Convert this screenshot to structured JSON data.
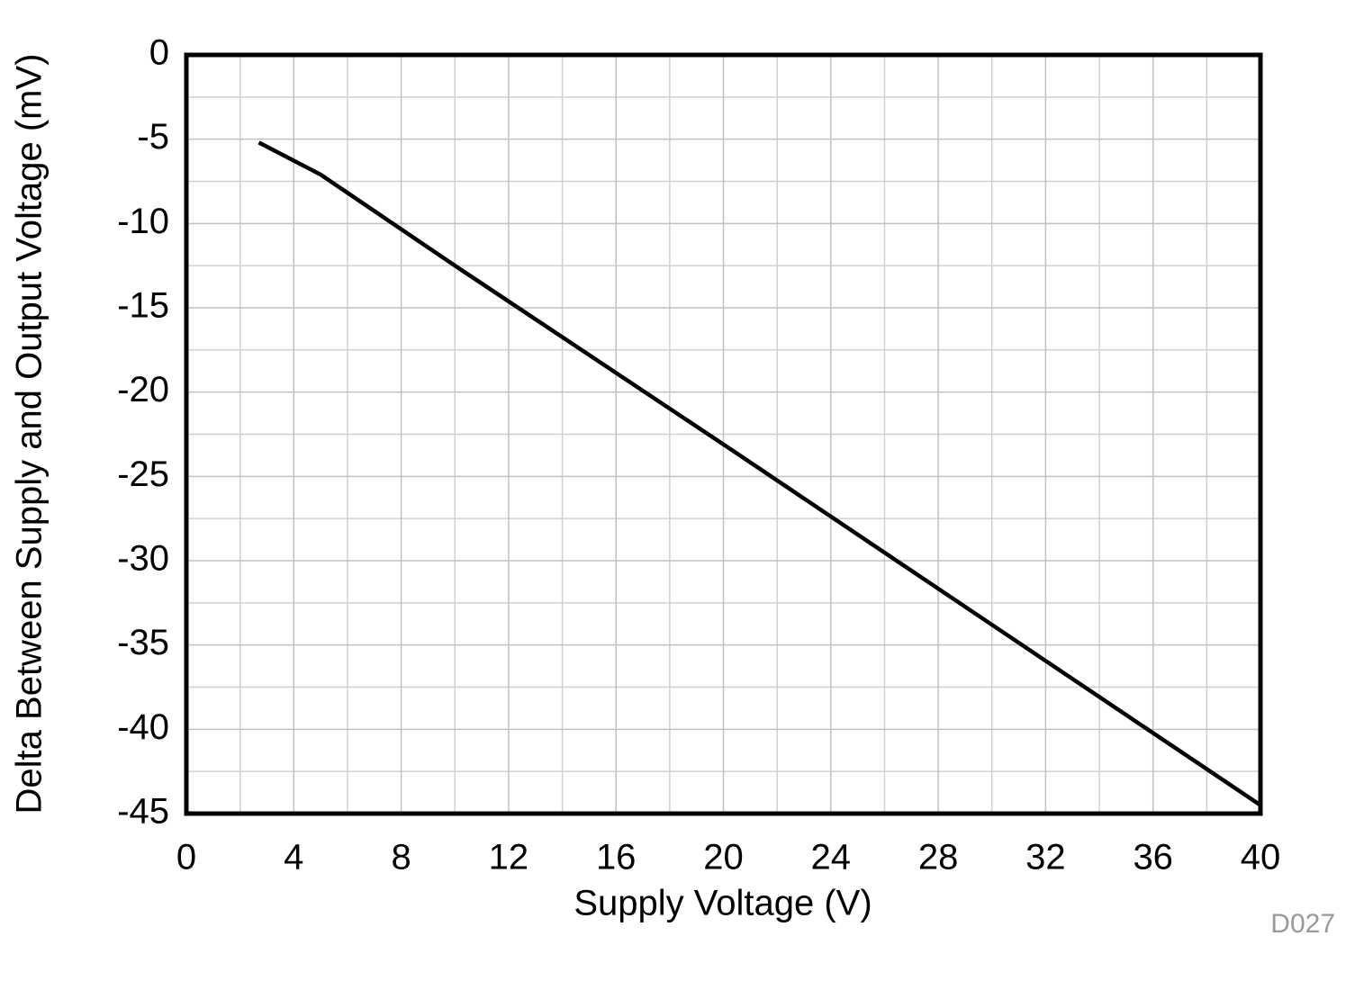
{
  "chart_data": {
    "type": "line",
    "x_label": "Supply Voltage (V)",
    "y_label": "Delta Between Supply and Output Voltage (mV)",
    "figure_id": "D027",
    "xlim": [
      0,
      40
    ],
    "xticks": [
      0,
      4,
      8,
      12,
      16,
      20,
      24,
      28,
      32,
      36,
      40
    ],
    "ylim": [
      -45,
      0
    ],
    "yticks": [
      -45,
      -40,
      -35,
      -30,
      -25,
      -20,
      -15,
      -10,
      -5,
      0
    ],
    "grid": true,
    "minor_grid": true,
    "x": [
      2.7,
      5,
      10,
      20,
      30,
      40
    ],
    "series": [
      {
        "color": "#000000",
        "values": [
          -5.2,
          -7.1,
          -12.5,
          -23.1,
          -33.8,
          -44.5
        ]
      }
    ]
  }
}
